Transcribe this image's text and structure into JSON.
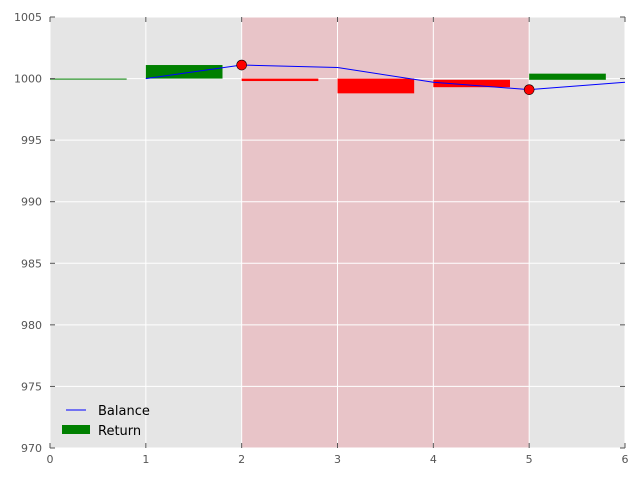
{
  "chart_data": {
    "type": "bar",
    "title": "",
    "xlabel": "",
    "ylabel": "",
    "xlim": [
      0,
      6
    ],
    "ylim": [
      970,
      1005
    ],
    "grid": true,
    "legend_position": "lower-left",
    "x_ticks": [
      "0",
      "1",
      "2",
      "3",
      "4",
      "5",
      "6"
    ],
    "y_ticks": [
      "970",
      "975",
      "980",
      "985",
      "990",
      "995",
      "1000",
      "1005"
    ],
    "shaded_regions": [
      {
        "x_start": 2,
        "x_end": 5,
        "color": "#e8c4c8"
      }
    ],
    "colors": {
      "plot_background": "#e5e5e5",
      "grid": "#ffffff",
      "positive_return": "#008000",
      "negative_return": "#ff0000",
      "balance_line": "#0000ff",
      "marker": "#ff0000"
    },
    "series": [
      {
        "name": "Balance",
        "type": "line",
        "x": [
          1,
          2,
          3,
          4,
          5,
          6
        ],
        "y": [
          1000.0,
          1001.1,
          1000.9,
          999.7,
          999.1,
          999.7
        ]
      },
      {
        "name": "Return",
        "type": "bar",
        "bars": [
          {
            "x": 0,
            "width": 0.8,
            "bottom": 1000.0,
            "value": 0.0,
            "color": "#008000"
          },
          {
            "x": 1,
            "width": 0.8,
            "bottom": 1000.0,
            "value": 1.1,
            "color": "#008000"
          },
          {
            "x": 2,
            "width": 0.8,
            "bottom": 999.8,
            "value": 0.2,
            "color": "#ff0000"
          },
          {
            "x": 3,
            "width": 0.8,
            "bottom": 998.8,
            "value": 1.2,
            "color": "#ff0000"
          },
          {
            "x": 4,
            "width": 0.8,
            "bottom": 999.3,
            "value": 0.6,
            "color": "#ff0000"
          },
          {
            "x": 5,
            "width": 0.8,
            "bottom": 999.9,
            "value": 0.5,
            "color": "#008000"
          }
        ]
      }
    ],
    "markers": [
      {
        "x": 2,
        "y": 1001.1
      },
      {
        "x": 5,
        "y": 999.1
      }
    ],
    "legend": [
      {
        "label": "Balance",
        "kind": "line",
        "color": "#0000ff"
      },
      {
        "label": "Return",
        "kind": "patch",
        "color": "#008000"
      }
    ]
  }
}
